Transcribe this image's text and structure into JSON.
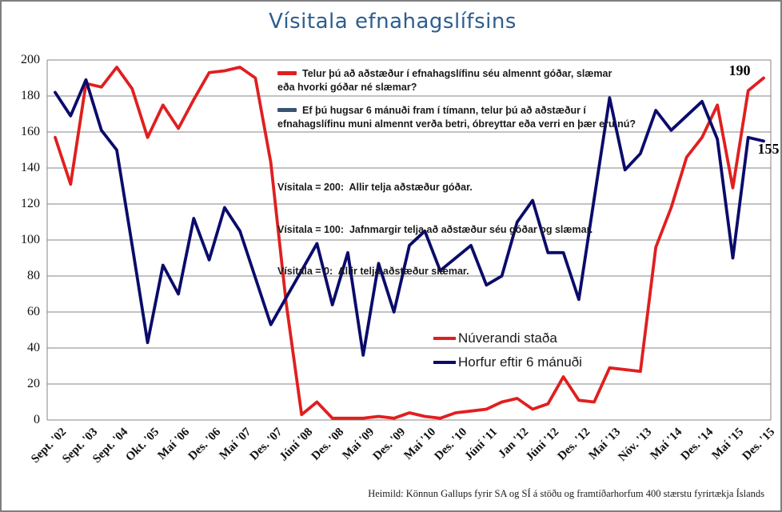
{
  "title": "Vísitala efnahagslífsins",
  "colors": {
    "title": "#2E5D8E",
    "grid": "#848484",
    "current_line": "#E01F1F",
    "outlook_line": "#0B0B6B",
    "outlook_annotation_marker": "#3B5372"
  },
  "annotations": {
    "q_current": {
      "marker": "red-line",
      "text": "Telur þú að aðstæður í efnahagslífinu séu almennt góðar, slæmar eða hvorki góðar né slæmar?"
    },
    "q_outlook": {
      "marker": "blue-line",
      "text": "Ef þú hugsar 6 mánuði fram í tímann, telur þú að aðstæður í efnahagslífinu muni almennt verða betri, óbreyttar eða verri en þær eru nú?"
    },
    "scale_notes": [
      "Vísitala = 200:  Allir telja aðstæður góðar.",
      "Vísitala = 100:  Jafnmargir telja að aðstæður séu góðar og slæmar.",
      "Vísitala = 0:  Allir telja aðstæður slæmar."
    ]
  },
  "end_labels": {
    "current": "190",
    "outlook": "155"
  },
  "source": "Heimild: Könnun Gallups fyrir SA og SÍ á stöðu og framtíðarhorfum 400 stærstu fyrirtækja Íslands",
  "chart_data": {
    "type": "line",
    "title": "Vísitala efnahagslífsins",
    "grid": true,
    "ylim": [
      0,
      200
    ],
    "ytick_step": 20,
    "y_tick_labels": [
      "200",
      "180",
      "160",
      "140",
      "120",
      "100",
      "80",
      "60",
      "40",
      "20",
      "0"
    ],
    "x_tick_labels": [
      "Sept. '02",
      "Sept. '03",
      "Sept. '04",
      "Okt. '05",
      "Maí '06",
      "Des. '06",
      "Maí '07",
      "Des. '07",
      "Júní '08",
      "Des. '08",
      "Maí '09",
      "Des. '09",
      "Maí '10",
      "Des. '10",
      "Júní '11",
      "Jan '12",
      "Júní '12",
      "Des. '12",
      "Maí '13",
      "Nóv. '13",
      "Maí '14",
      "Des. '14",
      "Maí '15",
      "Des. '15"
    ],
    "x_label_interval": 2,
    "legend_position": "inside-center-right",
    "series": [
      {
        "name": "Núverandi staða",
        "color": "#E01F1F",
        "values": [
          157,
          131,
          187,
          185,
          196,
          184,
          157,
          175,
          162,
          178,
          193,
          194,
          196,
          190,
          143,
          65,
          3,
          10,
          1,
          1,
          1,
          2,
          1,
          4,
          2,
          1,
          4,
          5,
          6,
          10,
          12,
          6,
          9,
          24,
          11,
          10,
          29,
          28,
          27,
          96,
          118,
          146,
          157,
          175,
          129,
          183,
          190
        ]
      },
      {
        "name": "Horfur eftir 6 mánuði",
        "color": "#0B0B6B",
        "values": [
          182,
          169,
          189,
          161,
          150,
          97,
          43,
          86,
          70,
          112,
          89,
          118,
          105,
          79,
          53,
          68,
          83,
          98,
          64,
          93,
          36,
          87,
          60,
          97,
          105,
          83,
          90,
          97,
          75,
          80,
          110,
          122,
          93,
          93,
          67,
          123,
          179,
          139,
          148,
          172,
          161,
          169,
          177,
          156,
          90,
          157,
          155
        ]
      }
    ]
  }
}
